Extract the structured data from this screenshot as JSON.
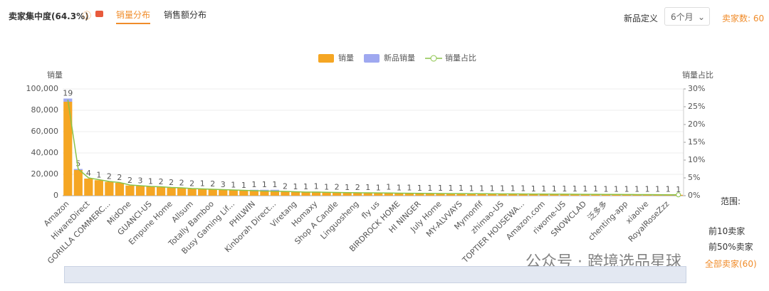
{
  "header": {
    "title": "卖家集中度(64.3%)",
    "tabs": [
      "销量分布",
      "销售额分布"
    ],
    "new_def_label": "新品定义",
    "new_def_value": "6个月",
    "seller_count": "卖家数: 60"
  },
  "chart_data": {
    "type": "bar",
    "stacked": true,
    "legend": "top",
    "y_label": "销量",
    "y2_label": "销量占比",
    "categories": [
      "Amazon",
      null,
      "HiwareDirect",
      null,
      "GORILLA COMMERC...",
      null,
      "MidOne",
      null,
      "GUANCI-US",
      null,
      "Empune Home",
      null,
      "Allsum",
      null,
      "Totally Bamboo",
      null,
      "Busy Gaming Lif...",
      null,
      "PHILWIN",
      null,
      "Kinborah Direct...",
      null,
      "Viretang",
      null,
      "Homaxy",
      null,
      "Shop A Candle",
      null,
      "Linguosheng",
      null,
      "fly us",
      null,
      "BIRDROCK HOME",
      null,
      "HI NINGER",
      null,
      "July Home",
      null,
      "MY-ALVVAYS",
      null,
      "Mymonfif",
      null,
      "zhimao-US",
      null,
      "TOPTIER HOUSEWA...",
      null,
      "Amazon.com",
      null,
      "riwome-US",
      null,
      "SNOWCLAD",
      null,
      "泛多多",
      null,
      "chenting-app",
      null,
      "xiaolve",
      null,
      "RoyalRoseZzz",
      null
    ],
    "series": [
      {
        "name": "销量",
        "color": "#f5a623",
        "values": [
          88000,
          24000,
          16000,
          14500,
          13000,
          12000,
          9500,
          9000,
          8500,
          8000,
          7500,
          7000,
          6500,
          6200,
          6000,
          5500,
          5000,
          4800,
          4500,
          4300,
          4000,
          3800,
          3500,
          3300,
          3200,
          3000,
          2900,
          2800,
          2700,
          2600,
          2500,
          2400,
          2300,
          2200,
          2100,
          2000,
          1950,
          1900,
          1850,
          1800,
          1750,
          1700,
          1650,
          1600,
          1550,
          1500,
          1450,
          1400,
          1350,
          1300,
          1250,
          1200,
          1150,
          1100,
          1050,
          1000,
          950,
          900,
          850,
          800
        ]
      },
      {
        "name": "新品销量",
        "color": "#9fa8f0",
        "values": [
          3000,
          1000,
          0,
          0,
          0,
          0,
          0,
          0,
          0,
          0,
          0,
          0,
          0,
          0,
          0,
          0,
          0,
          0,
          1000,
          1200,
          1500,
          0,
          0,
          0,
          600,
          0,
          0,
          0,
          0,
          0,
          0,
          500,
          0,
          0,
          0,
          0,
          0,
          0,
          0,
          0,
          0,
          0,
          0,
          0,
          0,
          0,
          0,
          0,
          0,
          0,
          0,
          0,
          0,
          0,
          0,
          0,
          0,
          0,
          0,
          0
        ]
      },
      {
        "name": "销量占比",
        "color": "#8bc34a",
        "axis": "y2",
        "type": "line",
        "values": [
          27,
          7.5,
          5,
          4.5,
          4,
          3.7,
          3,
          2.8,
          2.6,
          2.5,
          2.3,
          2.2,
          2,
          1.9,
          1.8,
          1.7,
          1.6,
          1.5,
          1.4,
          1.3,
          1.25,
          1.2,
          1.1,
          1,
          1,
          0.95,
          0.9,
          0.85,
          0.82,
          0.8,
          0.77,
          0.74,
          0.7,
          0.68,
          0.65,
          0.62,
          0.6,
          0.58,
          0.57,
          0.55,
          0.54,
          0.52,
          0.5,
          0.49,
          0.48,
          0.46,
          0.45,
          0.43,
          0.42,
          0.4,
          0.38,
          0.37,
          0.35,
          0.34,
          0.32,
          0.31,
          0.29,
          0.28,
          0.26,
          0.25
        ]
      }
    ],
    "bar_labels": [
      19,
      5,
      4,
      1,
      2,
      2,
      2,
      3,
      1,
      2,
      2,
      2,
      2,
      1,
      2,
      3,
      1,
      1,
      1,
      1,
      1,
      2,
      1,
      1,
      1,
      1,
      2,
      1,
      2,
      1,
      1,
      1,
      1,
      1,
      1,
      1,
      1,
      1,
      1,
      1,
      1,
      1,
      1,
      1,
      1,
      1,
      1,
      1,
      1,
      1,
      1,
      1,
      1,
      1,
      1,
      1,
      1,
      1,
      1,
      1
    ],
    "ylim": [
      0,
      100000
    ],
    "yticks": [
      0,
      {
        "value": 20000,
        "label": "20,000"
      },
      {
        "value": 40000,
        "label": "40,000"
      },
      {
        "value": 60000,
        "label": "60,000"
      },
      {
        "value": 80000,
        "label": "80,000"
      },
      {
        "value": 100000,
        "label": "100,000"
      }
    ],
    "y2lim": [
      0,
      30
    ],
    "y2ticks": [
      {
        "value": 0,
        "label": "0%"
      },
      {
        "value": 5,
        "label": "5%"
      },
      {
        "value": 10,
        "label": "10%"
      },
      {
        "value": 15,
        "label": "15%"
      },
      {
        "value": 20,
        "label": "20%"
      },
      {
        "value": 25,
        "label": "25%"
      },
      {
        "value": 30,
        "label": "30%"
      }
    ],
    "grid": true
  },
  "range": {
    "title": "范围:",
    "options": [
      "前10卖家",
      "前50%卖家",
      "全部卖家(60)"
    ]
  },
  "watermark": "公众号 · 跨境选品星球"
}
